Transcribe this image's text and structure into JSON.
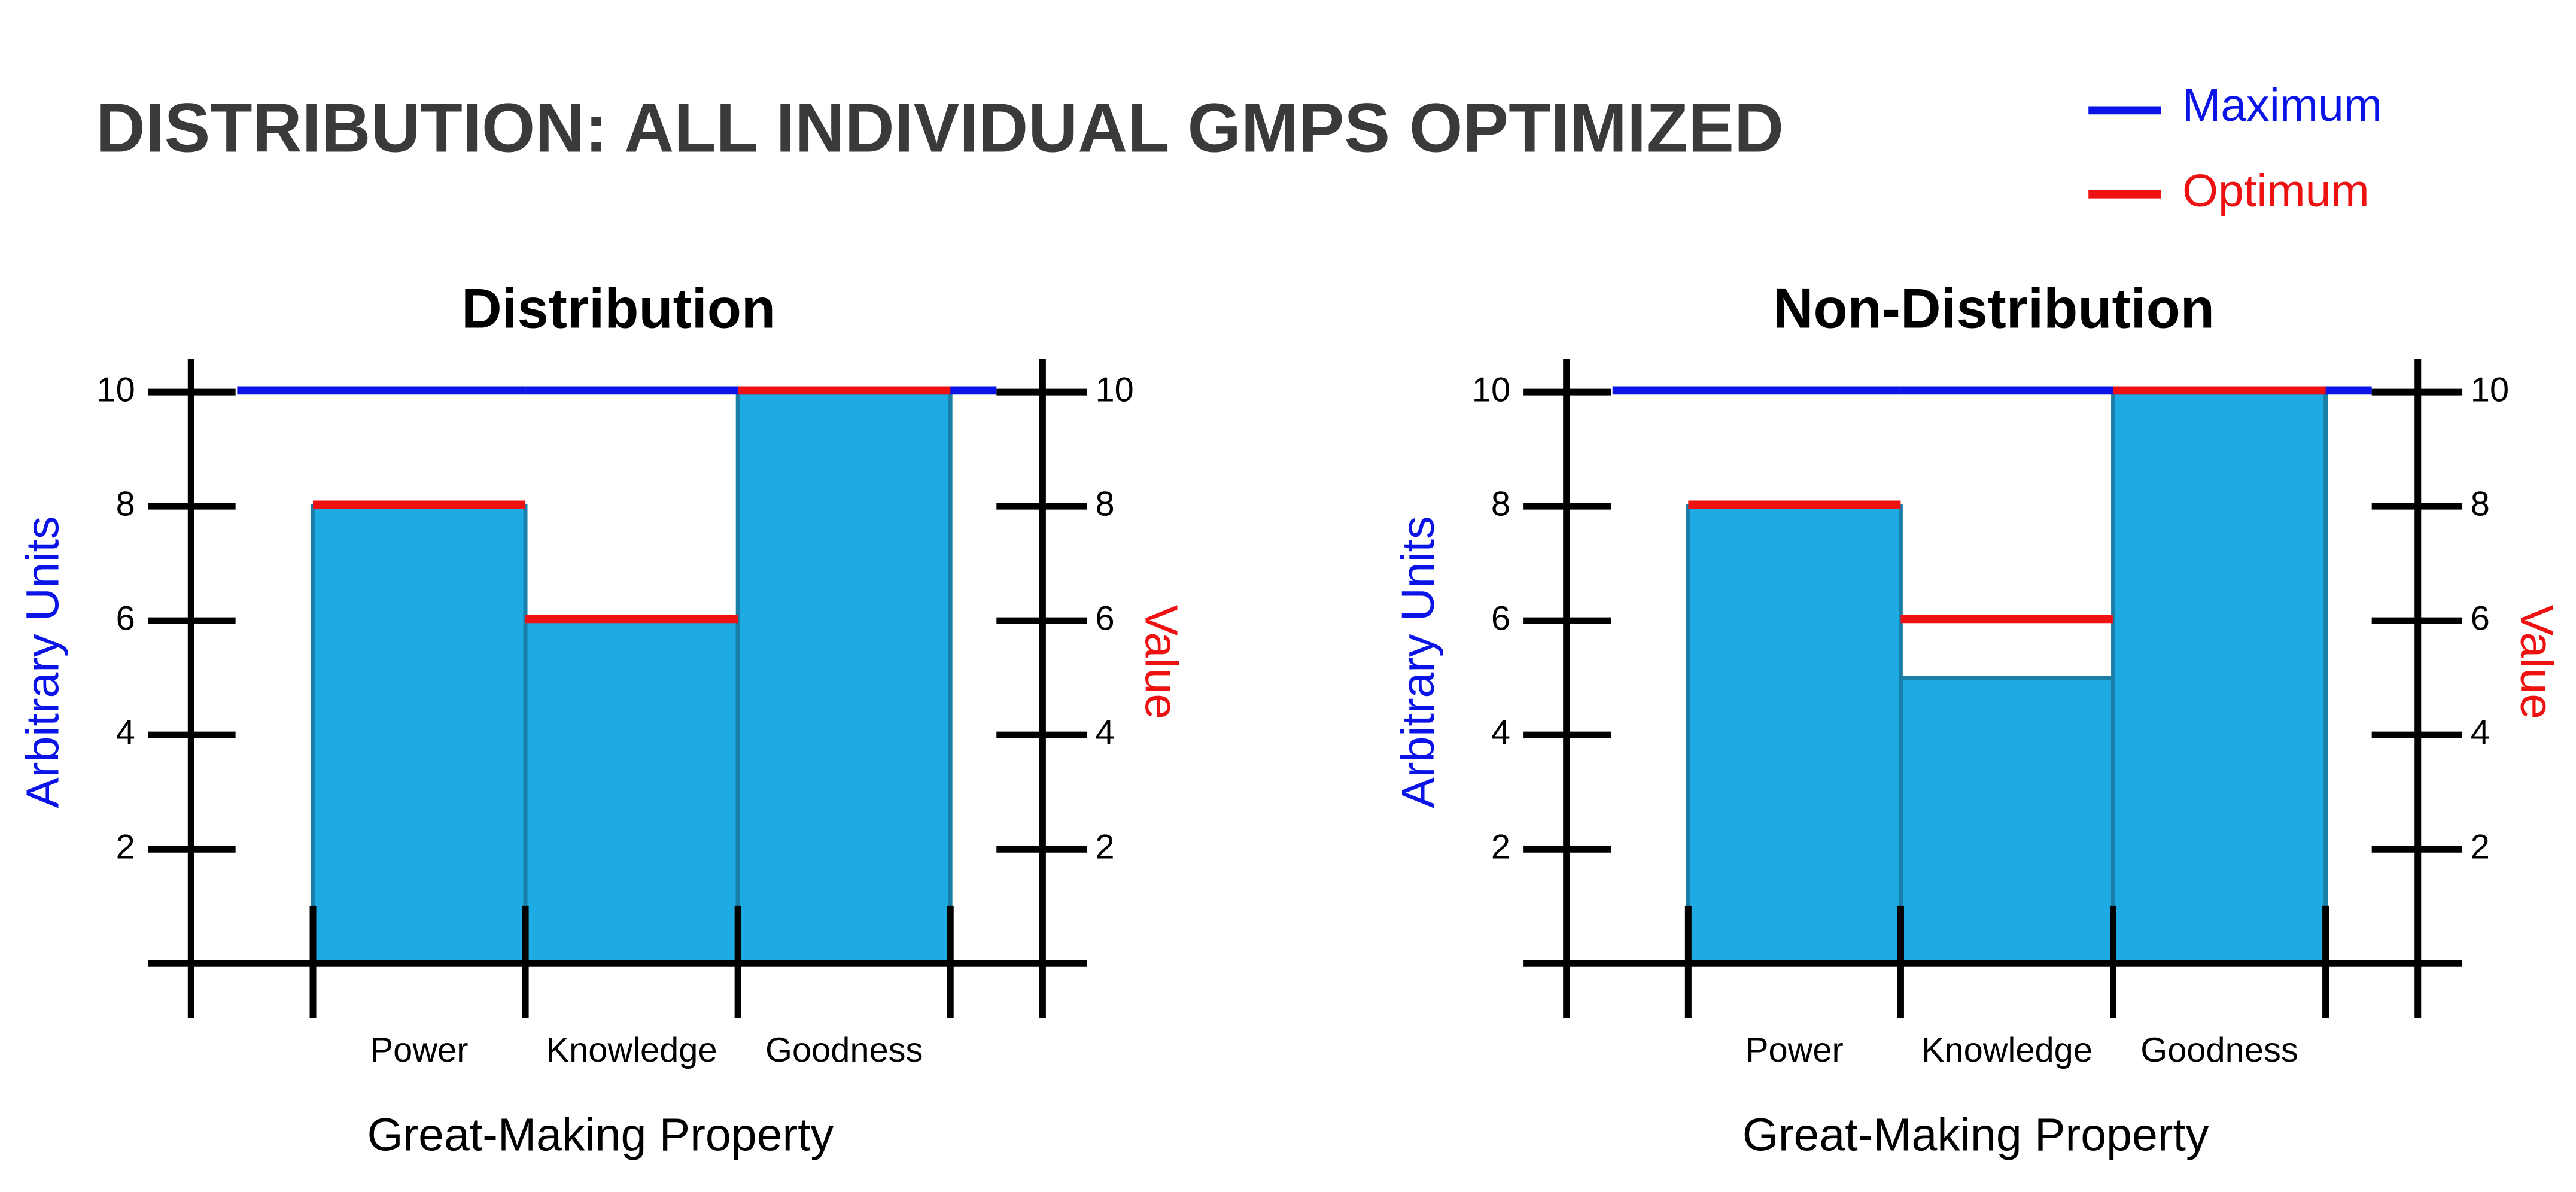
{
  "title": "DISTRIBUTION: ALL INDIVIDUAL GMPS OPTIMIZED",
  "chart_data": [
    {
      "type": "bar",
      "title": "Distribution",
      "xlabel": "Great-Making Property",
      "ylabel": "Arbitrary Units",
      "y2label": "Value",
      "categories": [
        "Power",
        "Knowledge",
        "Goodness"
      ],
      "series": [
        {
          "color": "#1eaae2",
          "values": [
            8,
            6,
            10
          ]
        },
        {
          "name": "Maximum",
          "color": "#0a14e6",
          "values": [
            10,
            10,
            10
          ]
        },
        {
          "name": "Optimum",
          "color": "#ee1111",
          "axis": "y2",
          "values": [
            8,
            6,
            10
          ]
        }
      ],
      "ylim": [
        0,
        10
      ],
      "yticks": [
        2,
        4,
        6,
        8,
        10
      ],
      "y2lim": [
        0,
        10
      ],
      "y2ticks": [
        2,
        4,
        6,
        8,
        10
      ]
    },
    {
      "type": "bar",
      "title": "Non-Distribution",
      "xlabel": "Great-Making Property",
      "ylabel": "Arbitrary Units",
      "y2label": "Value",
      "categories": [
        "Power",
        "Knowledge",
        "Goodness"
      ],
      "series": [
        {
          "color": "#1eaae2",
          "values": [
            8,
            5,
            10
          ]
        },
        {
          "name": "Maximum",
          "color": "#0a14e6",
          "values": [
            10,
            10,
            10
          ]
        },
        {
          "name": "Optimum",
          "color": "#ee1111",
          "axis": "y2",
          "values": [
            8,
            6,
            10
          ]
        }
      ],
      "ylim": [
        0,
        10
      ],
      "yticks": [
        2,
        4,
        6,
        8,
        10
      ],
      "y2lim": [
        0,
        10
      ],
      "y2ticks": [
        2,
        4,
        6,
        8,
        10
      ]
    }
  ]
}
